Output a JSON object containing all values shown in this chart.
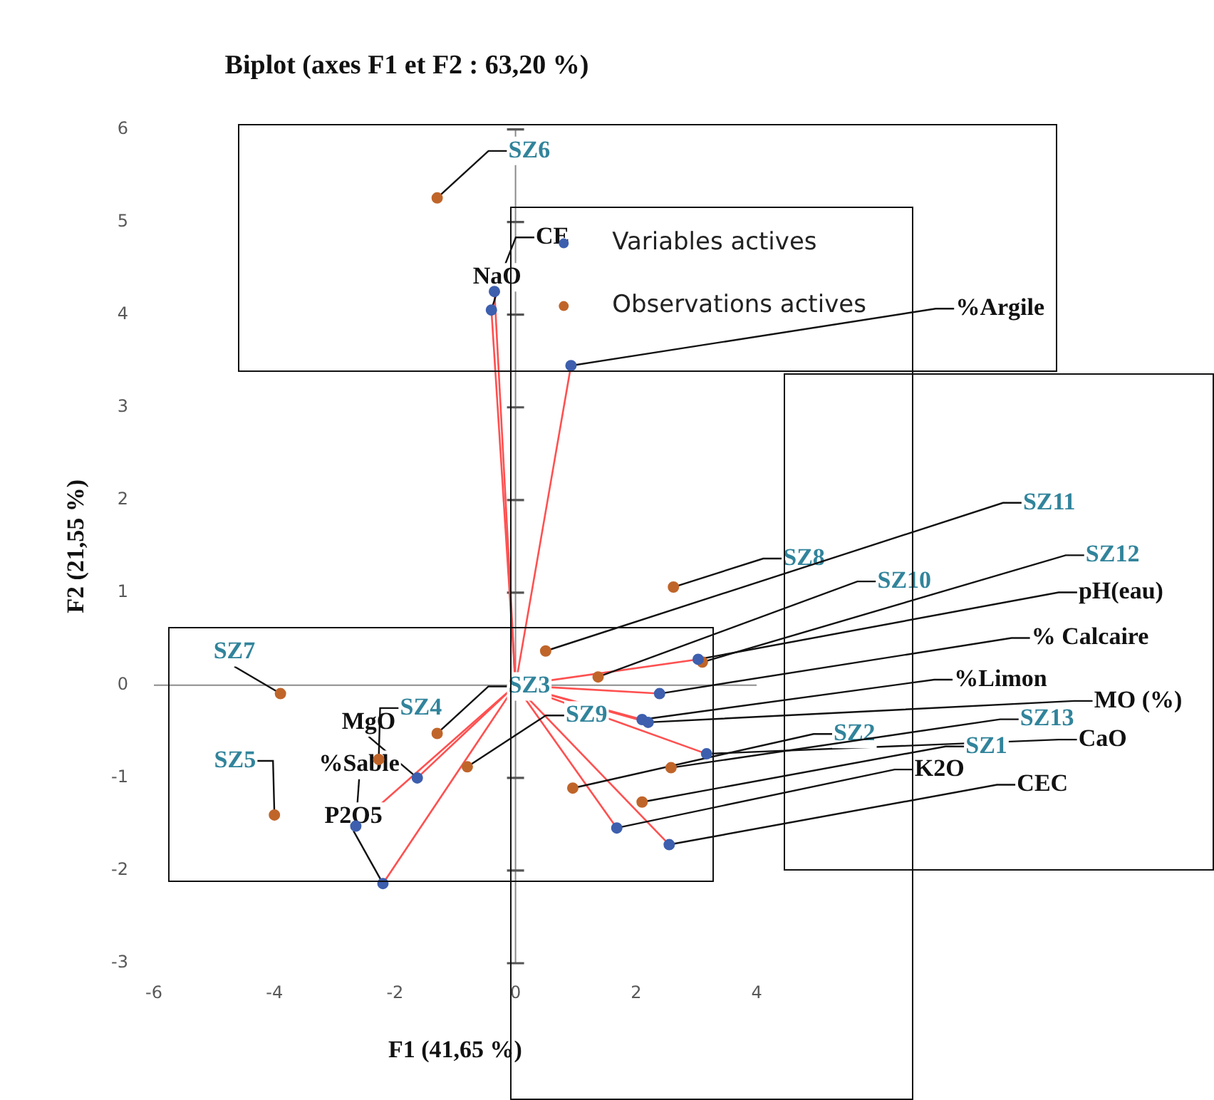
{
  "chart_data": {
    "type": "scatter",
    "title": "Biplot (axes F1 et F2 : 63,20 %)",
    "xlabel": "F1 (41,65 %)",
    "ylabel": "F2 (21,55 %)",
    "xlim": [
      -6,
      4
    ],
    "xticks": [
      -6,
      -4,
      -2,
      0,
      2,
      4
    ],
    "ylim": [
      -3,
      6
    ],
    "yticks": [
      -3,
      -2,
      -1,
      0,
      1,
      2,
      3,
      4,
      5,
      6
    ],
    "grid": false,
    "ref_lines": [
      {
        "axis": "x",
        "value": 0,
        "color": "#8c8c8c"
      },
      {
        "axis": "y",
        "value": 0,
        "color": "#8c8c8c"
      }
    ],
    "legend": "top right",
    "marker": "circle",
    "series": [
      {
        "name": "Variables actives",
        "color": "#3d5fae",
        "x": [
          -0.35,
          -0.4,
          0.92,
          3.03,
          2.39,
          2.1,
          2.2,
          3.17,
          1.68,
          2.55,
          -1.63,
          -2.65,
          -2.2
        ],
        "values": [
          4.25,
          4.05,
          3.45,
          0.28,
          -0.09,
          -0.37,
          -0.4,
          -0.74,
          -1.54,
          -1.72,
          -1.0,
          -1.52,
          -2.14
        ],
        "value_labels": [
          "CE",
          "NaO",
          "%Argile",
          "pH(eau)",
          "% Calcaire",
          "%Limon",
          "MO (%)",
          "CaO",
          "K2O",
          "CEC",
          "MgO",
          "%Sable",
          "P2O5"
        ]
      },
      {
        "name": "Observations actives",
        "color": "#c0652a",
        "x": [
          2.1,
          0.95,
          -1.3,
          -2.27,
          -4.0,
          -1.3,
          -3.9,
          2.62,
          -0.8,
          1.37,
          0.5,
          3.1,
          2.58
        ],
        "values": [
          -1.26,
          -1.11,
          -0.52,
          -0.8,
          -1.4,
          5.26,
          -0.09,
          1.06,
          -0.88,
          0.09,
          0.37,
          0.25,
          -0.89
        ],
        "value_labels": [
          "SZ1",
          "SZ2",
          "SZ3",
          "SZ4",
          "SZ5",
          "SZ6",
          "SZ7",
          "SZ8",
          "SZ9",
          "SZ10",
          "SZ11",
          "SZ12",
          "SZ13"
        ]
      }
    ]
  }
}
